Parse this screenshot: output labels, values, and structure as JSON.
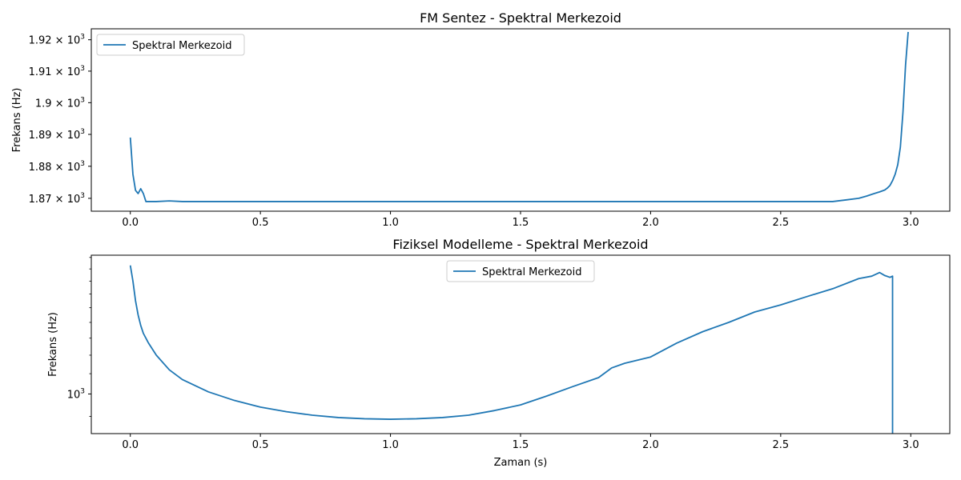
{
  "chart_data": [
    {
      "type": "line",
      "title": "FM Sentez - Spektral Merkezoid",
      "xlabel": "",
      "ylabel": "Frekans (Hz)",
      "xlim": [
        -0.15,
        3.15
      ],
      "ylim": [
        1866,
        1923.5
      ],
      "yscale": "log",
      "legend": "upper left",
      "grid": false,
      "xticks": [
        {
          "value": 0.0,
          "label": "0.0"
        },
        {
          "value": 0.5,
          "label": "0.5"
        },
        {
          "value": 1.0,
          "label": "1.0"
        },
        {
          "value": 1.5,
          "label": "1.5"
        },
        {
          "value": 2.0,
          "label": "2.0"
        },
        {
          "value": 2.5,
          "label": "2.5"
        },
        {
          "value": 3.0,
          "label": "3.0"
        }
      ],
      "yticks": [
        {
          "value": 1870,
          "mant": "1.87",
          "exp": "3"
        },
        {
          "value": 1880,
          "mant": "1.88",
          "exp": "3"
        },
        {
          "value": 1890,
          "mant": "1.89",
          "exp": "3"
        },
        {
          "value": 1900,
          "mant": "1.9",
          "exp": "3"
        },
        {
          "value": 1910,
          "mant": "1.91",
          "exp": "3"
        },
        {
          "value": 1920,
          "mant": "1.92",
          "exp": "3"
        }
      ],
      "series": [
        {
          "name": "Spektral Merkezoid",
          "color": "#1f77b4",
          "x": [
            0.0,
            0.01,
            0.02,
            0.03,
            0.04,
            0.05,
            0.06,
            0.08,
            0.1,
            0.15,
            0.2,
            0.3,
            0.4,
            0.5,
            0.6,
            0.7,
            0.8,
            0.9,
            1.0,
            1.1,
            1.2,
            1.3,
            1.4,
            1.5,
            1.6,
            1.7,
            1.8,
            1.9,
            2.0,
            2.1,
            2.2,
            2.3,
            2.4,
            2.5,
            2.6,
            2.7,
            2.75,
            2.8,
            2.83,
            2.86,
            2.88,
            2.9,
            2.91,
            2.92,
            2.93,
            2.94,
            2.95,
            2.96,
            2.97,
            2.98,
            2.99
          ],
          "y": [
            1889,
            1877.5,
            1872.5,
            1871.5,
            1873,
            1871.5,
            1869,
            1869,
            1869,
            1869.2,
            1869,
            1869,
            1869,
            1869,
            1869,
            1869,
            1869,
            1869,
            1869,
            1869,
            1869,
            1869,
            1869,
            1869,
            1869,
            1869,
            1869,
            1869,
            1869,
            1869,
            1869,
            1869,
            1869,
            1869,
            1869,
            1869,
            1869.5,
            1870,
            1870.7,
            1871.5,
            1872,
            1872.6,
            1873.2,
            1874,
            1875.5,
            1877.5,
            1880.5,
            1886,
            1897,
            1912,
            1922.5
          ]
        }
      ]
    },
    {
      "type": "line",
      "title": "Fiziksel Modelleme - Spektral Merkezoid",
      "xlabel": "Zaman (s)",
      "ylabel": "Frekans (Hz)",
      "xlim": [
        -0.15,
        3.15
      ],
      "ylim": [
        830,
        1920
      ],
      "yscale": "log",
      "legend": "upper center",
      "grid": false,
      "xticks": [
        {
          "value": 0.0,
          "label": "0.0"
        },
        {
          "value": 0.5,
          "label": "0.5"
        },
        {
          "value": 1.0,
          "label": "1.0"
        },
        {
          "value": 1.5,
          "label": "1.5"
        },
        {
          "value": 2.0,
          "label": "2.0"
        },
        {
          "value": 2.5,
          "label": "2.5"
        },
        {
          "value": 3.0,
          "label": "3.0"
        }
      ],
      "yticks": [
        {
          "value": 1000,
          "mant": "10",
          "exp": "3"
        }
      ],
      "minor_yticks": [
        900,
        2000
      ],
      "series": [
        {
          "name": "Spektral Merkezoid",
          "color": "#1f77b4",
          "x": [
            0.0,
            0.01,
            0.02,
            0.03,
            0.04,
            0.05,
            0.07,
            0.1,
            0.15,
            0.2,
            0.3,
            0.4,
            0.5,
            0.6,
            0.7,
            0.8,
            0.9,
            1.0,
            1.1,
            1.2,
            1.3,
            1.4,
            1.5,
            1.6,
            1.7,
            1.8,
            1.85,
            1.9,
            2.0,
            2.1,
            2.2,
            2.3,
            2.4,
            2.5,
            2.6,
            2.7,
            2.8,
            2.85,
            2.88,
            2.9,
            2.92,
            2.93,
            2.93
          ],
          "y": [
            1830,
            1700,
            1550,
            1450,
            1380,
            1330,
            1270,
            1200,
            1120,
            1070,
            1010,
            970,
            940,
            920,
            905,
            895,
            890,
            888,
            890,
            895,
            905,
            925,
            950,
            990,
            1035,
            1080,
            1130,
            1155,
            1190,
            1270,
            1340,
            1400,
            1470,
            1520,
            1580,
            1640,
            1720,
            1740,
            1770,
            1745,
            1730,
            1740,
            830
          ]
        }
      ]
    }
  ]
}
